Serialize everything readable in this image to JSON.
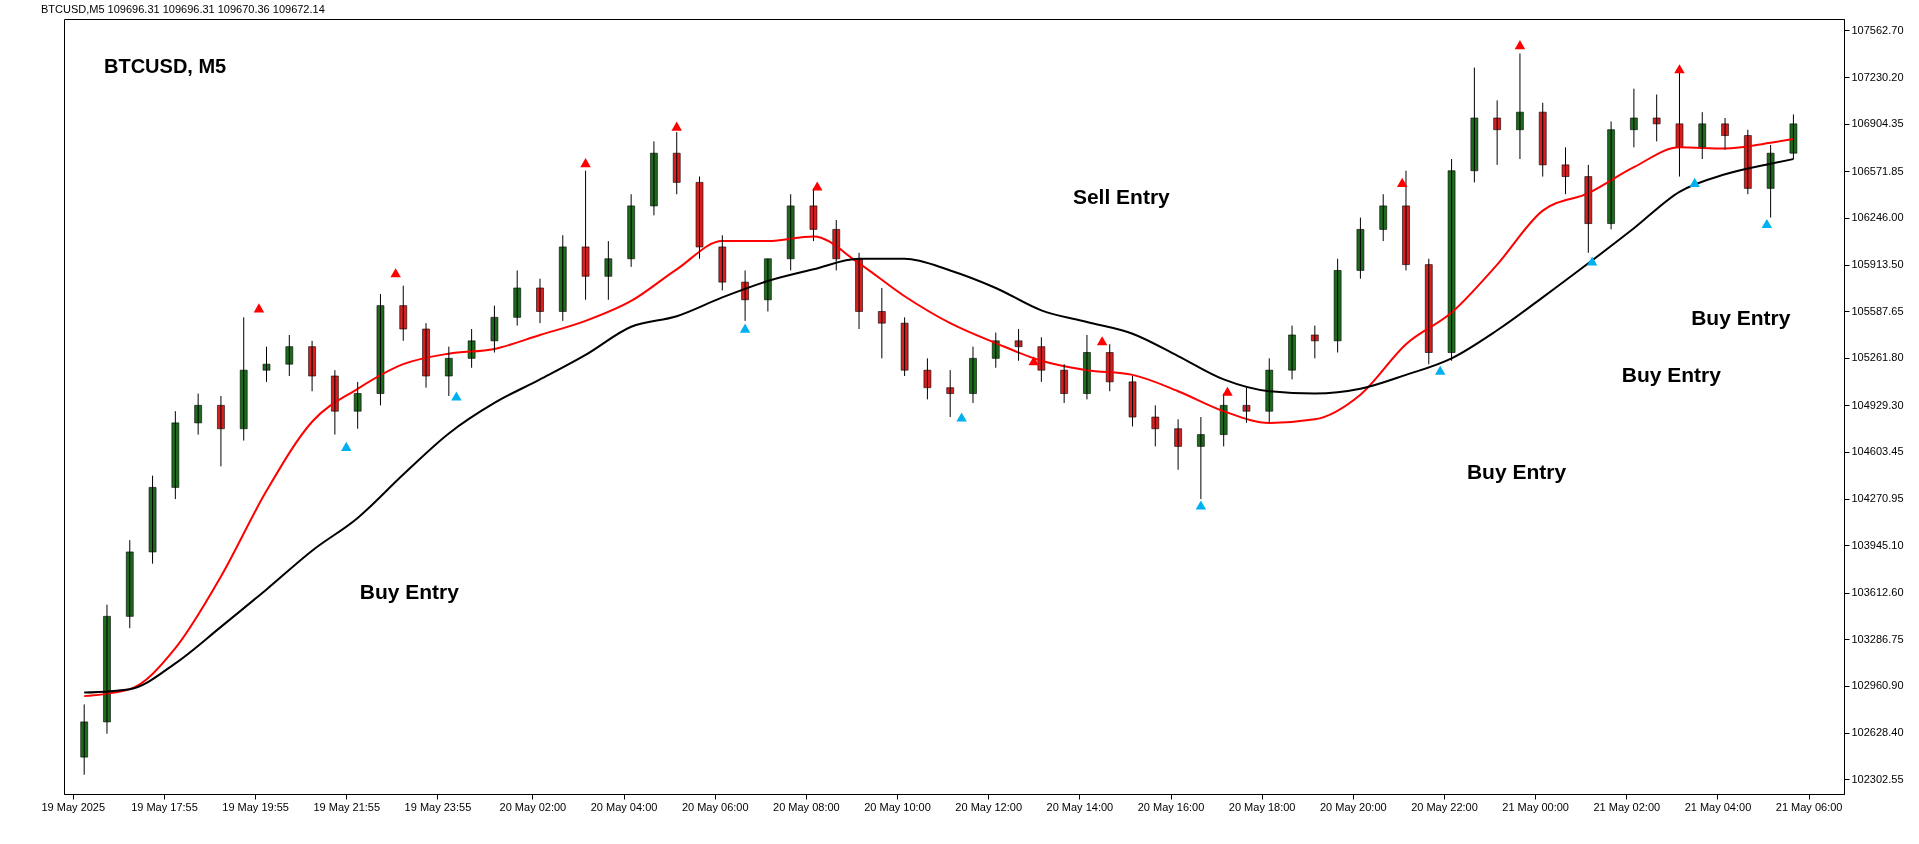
{
  "chart_data": {
    "type": "candlestick",
    "title": "BTCUSD, M5",
    "subtitle": "BTCUSD,M5  109696.31 109696.31 109670.36 109672.14",
    "x": [
      "2025-05-19T16:10",
      "2025-05-19T16:40",
      "2025-05-19T17:10",
      "2025-05-19T17:40",
      "2025-05-19T18:10",
      "2025-05-19T18:40",
      "2025-05-19T19:10",
      "2025-05-19T19:40",
      "2025-05-19T20:10",
      "2025-05-19T20:40",
      "2025-05-19T21:10",
      "2025-05-19T21:40",
      "2025-05-19T22:10",
      "2025-05-19T22:40",
      "2025-05-19T23:10",
      "2025-05-19T23:40",
      "2025-05-20T00:10",
      "2025-05-20T00:40",
      "2025-05-20T01:10",
      "2025-05-20T01:40",
      "2025-05-20T02:10",
      "2025-05-20T02:40",
      "2025-05-20T03:10",
      "2025-05-20T03:40",
      "2025-05-20T04:10",
      "2025-05-20T04:40",
      "2025-05-20T05:10",
      "2025-05-20T05:40",
      "2025-05-20T06:10",
      "2025-05-20T06:40",
      "2025-05-20T07:10",
      "2025-05-20T07:40",
      "2025-05-20T08:10",
      "2025-05-20T08:40",
      "2025-05-20T09:10",
      "2025-05-20T09:40",
      "2025-05-20T10:10",
      "2025-05-20T10:40",
      "2025-05-20T11:10",
      "2025-05-20T11:40",
      "2025-05-20T12:10",
      "2025-05-20T12:40",
      "2025-05-20T13:10",
      "2025-05-20T13:40",
      "2025-05-20T14:10",
      "2025-05-20T14:40",
      "2025-05-20T15:10",
      "2025-05-20T15:40",
      "2025-05-20T16:10",
      "2025-05-20T16:40",
      "2025-05-20T17:10",
      "2025-05-20T17:40",
      "2025-05-20T18:10",
      "2025-05-20T18:40",
      "2025-05-20T19:10",
      "2025-05-20T19:40",
      "2025-05-20T20:10",
      "2025-05-20T20:40",
      "2025-05-20T21:10",
      "2025-05-20T21:40",
      "2025-05-20T22:10",
      "2025-05-20T22:40",
      "2025-05-20T23:10",
      "2025-05-20T23:40",
      "2025-05-21T00:10",
      "2025-05-21T00:40",
      "2025-05-21T01:10",
      "2025-05-21T01:40",
      "2025-05-21T02:10",
      "2025-05-21T02:40",
      "2025-05-21T03:10",
      "2025-05-21T03:40",
      "2025-05-21T04:10",
      "2025-05-21T04:40",
      "2025-05-21T05:10",
      "2025-05-21T05:40"
    ],
    "ohlc": [
      [
        102459,
        102829,
        102335,
        102706
      ],
      [
        102706,
        103529,
        102623,
        103447
      ],
      [
        103447,
        103982,
        103364,
        103899
      ],
      [
        103899,
        104435,
        103817,
        104352
      ],
      [
        104352,
        104887,
        104270,
        104805
      ],
      [
        104805,
        105011,
        104723,
        104928
      ],
      [
        104928,
        104994,
        104500,
        104764
      ],
      [
        104764,
        105546,
        104681,
        105175
      ],
      [
        105175,
        105340,
        105093,
        105217
      ],
      [
        105217,
        105422,
        105134,
        105340
      ],
      [
        105340,
        105381,
        105027,
        105134
      ],
      [
        105134,
        105175,
        104723,
        104887
      ],
      [
        104887,
        105093,
        104764,
        105011
      ],
      [
        105011,
        105710,
        104928,
        105628
      ],
      [
        105628,
        105768,
        105381,
        105464
      ],
      [
        105464,
        105505,
        105052,
        105134
      ],
      [
        105134,
        105340,
        104994,
        105258
      ],
      [
        105258,
        105464,
        105192,
        105381
      ],
      [
        105381,
        105628,
        105299,
        105546
      ],
      [
        105546,
        105875,
        105488,
        105752
      ],
      [
        105752,
        105817,
        105505,
        105587
      ],
      [
        105587,
        106122,
        105521,
        106040
      ],
      [
        106040,
        106575,
        105669,
        105834
      ],
      [
        105834,
        106081,
        105669,
        105957
      ],
      [
        105957,
        106410,
        105900,
        106328
      ],
      [
        106328,
        106781,
        106262,
        106698
      ],
      [
        106698,
        106846,
        106410,
        106493
      ],
      [
        106493,
        106534,
        105957,
        106040
      ],
      [
        106040,
        106122,
        105735,
        105793
      ],
      [
        105793,
        105875,
        105521,
        105669
      ],
      [
        105669,
        105957,
        105587,
        105957
      ],
      [
        105957,
        106410,
        105875,
        106328
      ],
      [
        106328,
        106451,
        106081,
        106163
      ],
      [
        106163,
        106229,
        105875,
        105957
      ],
      [
        105957,
        105999,
        105464,
        105587
      ],
      [
        105587,
        105752,
        105258,
        105505
      ],
      [
        105505,
        105546,
        105134,
        105175
      ],
      [
        105175,
        105258,
        104970,
        105052
      ],
      [
        105052,
        105175,
        104846,
        105011
      ],
      [
        105011,
        105340,
        104945,
        105258
      ],
      [
        105258,
        105439,
        105192,
        105381
      ],
      [
        105381,
        105464,
        105241,
        105340
      ],
      [
        105340,
        105406,
        105093,
        105175
      ],
      [
        105175,
        105217,
        104945,
        105011
      ],
      [
        105011,
        105422,
        104970,
        105299
      ],
      [
        105299,
        105357,
        105027,
        105093
      ],
      [
        105093,
        105134,
        104780,
        104846
      ],
      [
        104846,
        104928,
        104640,
        104764
      ],
      [
        104764,
        104830,
        104476,
        104640
      ],
      [
        104640,
        104846,
        104270,
        104723
      ],
      [
        104723,
        105011,
        104640,
        104928
      ],
      [
        104928,
        105052,
        104805,
        104887
      ],
      [
        104887,
        105258,
        104805,
        105175
      ],
      [
        105175,
        105488,
        105110,
        105422
      ],
      [
        105422,
        105488,
        105258,
        105381
      ],
      [
        105381,
        105957,
        105299,
        105875
      ],
      [
        105875,
        106246,
        105817,
        106163
      ],
      [
        106163,
        106410,
        106081,
        106328
      ],
      [
        106328,
        106575,
        105875,
        105916
      ],
      [
        105916,
        105957,
        105217,
        105299
      ],
      [
        105299,
        106657,
        105241,
        106575
      ],
      [
        106575,
        107299,
        106493,
        106945
      ],
      [
        106945,
        107069,
        106616,
        106863
      ],
      [
        106863,
        107398,
        106657,
        106986
      ],
      [
        106986,
        107052,
        106534,
        106616
      ],
      [
        106616,
        106739,
        106410,
        106534
      ],
      [
        106534,
        106616,
        105999,
        106204
      ],
      [
        106204,
        106921,
        106163,
        106863
      ],
      [
        106863,
        107151,
        106739,
        106945
      ],
      [
        106945,
        107110,
        106781,
        106904
      ],
      [
        106904,
        107275,
        106534,
        106739
      ],
      [
        106739,
        106986,
        106657,
        106904
      ],
      [
        106904,
        106945,
        106723,
        106822
      ],
      [
        106822,
        106863,
        106410,
        106451
      ],
      [
        106451,
        106756,
        106246,
        106698
      ],
      [
        106698,
        106970,
        106657,
        106904
      ]
    ],
    "series": [
      {
        "type": "line",
        "color": "#ff0000",
        "x": [
          "2025-05-19T16:10",
          "2025-05-19T17:10",
          "2025-05-19T18:10",
          "2025-05-19T19:10",
          "2025-05-19T20:10",
          "2025-05-19T21:10",
          "2025-05-19T22:10",
          "2025-05-19T23:10",
          "2025-05-20T00:10",
          "2025-05-20T01:10",
          "2025-05-20T02:10",
          "2025-05-20T03:10",
          "2025-05-20T04:10",
          "2025-05-20T05:10",
          "2025-05-20T06:10",
          "2025-05-20T07:10",
          "2025-05-20T08:10",
          "2025-05-20T09:10",
          "2025-05-20T10:10",
          "2025-05-20T11:10",
          "2025-05-20T12:10",
          "2025-05-20T13:10",
          "2025-05-20T14:10",
          "2025-05-20T15:10",
          "2025-05-20T16:10",
          "2025-05-20T17:10",
          "2025-05-20T18:10",
          "2025-05-20T19:10",
          "2025-05-20T20:10",
          "2025-05-20T21:10",
          "2025-05-20T22:10",
          "2025-05-20T23:10",
          "2025-05-21T00:10",
          "2025-05-21T01:10",
          "2025-05-21T02:10",
          "2025-05-21T03:10",
          "2025-05-21T04:10",
          "2025-05-21T05:10",
          "2025-05-21T05:40"
        ],
        "values": [
          102887,
          102936,
          103224,
          103727,
          104328,
          104813,
          105044,
          105217,
          105291,
          105324,
          105422,
          105521,
          105661,
          105883,
          106081,
          106081,
          106114,
          105925,
          105694,
          105505,
          105365,
          105241,
          105175,
          105142,
          105027,
          104887,
          104805,
          104830,
          105003,
          105357,
          105579,
          105916,
          106295,
          106418,
          106600,
          106739,
          106731,
          106772,
          106797
        ]
      },
      {
        "type": "line",
        "color": "#000000",
        "x": [
          "2025-05-19T16:10",
          "2025-05-19T17:10",
          "2025-05-19T18:10",
          "2025-05-19T19:10",
          "2025-05-19T20:10",
          "2025-05-19T21:10",
          "2025-05-19T22:10",
          "2025-05-19T23:10",
          "2025-05-20T00:10",
          "2025-05-20T01:10",
          "2025-05-20T02:10",
          "2025-05-20T03:10",
          "2025-05-20T04:10",
          "2025-05-20T05:10",
          "2025-05-20T06:10",
          "2025-05-20T07:10",
          "2025-05-20T08:10",
          "2025-05-20T09:10",
          "2025-05-20T10:10",
          "2025-05-20T11:10",
          "2025-05-20T12:10",
          "2025-05-20T13:10",
          "2025-05-20T14:10",
          "2025-05-20T15:10",
          "2025-05-20T16:10",
          "2025-05-20T17:10",
          "2025-05-20T18:10",
          "2025-05-20T19:10",
          "2025-05-20T20:10",
          "2025-05-20T21:10",
          "2025-05-20T22:10",
          "2025-05-20T23:10",
          "2025-05-21T00:10",
          "2025-05-21T01:10",
          "2025-05-21T02:10",
          "2025-05-21T03:10",
          "2025-05-21T04:10",
          "2025-05-21T05:10",
          "2025-05-21T05:40"
        ],
        "values": [
          102912,
          102936,
          103117,
          103373,
          103636,
          103908,
          104138,
          104443,
          104731,
          104945,
          105110,
          105282,
          105480,
          105554,
          105686,
          105801,
          105883,
          105957,
          105957,
          105875,
          105752,
          105595,
          105513,
          105431,
          105274,
          105110,
          105027,
          105011,
          105044,
          105142,
          105258,
          105455,
          105686,
          105925,
          106171,
          106427,
          106550,
          106624,
          106657
        ]
      },
      {
        "type": "scatter",
        "marker": "triangle",
        "color": "#ff0000",
        "x": [
          "2025-05-19T20:00",
          "2025-05-19T23:00",
          "2025-05-20T03:10",
          "2025-05-20T05:10",
          "2025-05-20T08:15",
          "2025-05-20T13:00",
          "2025-05-20T14:30",
          "2025-05-20T17:15",
          "2025-05-20T21:05",
          "2025-05-20T23:40",
          "2025-05-21T03:10"
        ],
        "values": [
          105612,
          105859,
          106632,
          106888,
          106468,
          105241,
          105381,
          105027,
          106493,
          107460,
          107291
        ]
      },
      {
        "type": "scatter",
        "marker": "triangle",
        "color": "#00b0f0",
        "x": [
          "2025-05-19T21:55",
          "2025-05-20T00:20",
          "2025-05-20T06:40",
          "2025-05-20T11:25",
          "2025-05-20T16:40",
          "2025-05-20T21:55",
          "2025-05-21T01:15",
          "2025-05-21T03:30",
          "2025-05-21T05:05"
        ],
        "values": [
          104640,
          104994,
          105470,
          104846,
          104229,
          105175,
          105941,
          106493,
          106204
        ]
      }
    ],
    "annotations": [
      "Buy Entry",
      "Sell Entry",
      "Buy Entry",
      "Buy Entry",
      "Buy Entry"
    ],
    "xlim": [
      "2025-05-19T15:50",
      "2025-05-21T06:40"
    ],
    "xticks": [
      {
        "value": "2025-05-19T15:55",
        "label": "19 May 2025"
      },
      {
        "value": "2025-05-19T17:55",
        "label": "19 May 17:55"
      },
      {
        "value": "2025-05-19T19:55",
        "label": "19 May 19:55"
      },
      {
        "value": "2025-05-19T21:55",
        "label": "19 May 21:55"
      },
      {
        "value": "2025-05-19T23:55",
        "label": "19 May 23:55"
      },
      {
        "value": "2025-05-20T02:00",
        "label": "20 May 02:00"
      },
      {
        "value": "2025-05-20T04:00",
        "label": "20 May 04:00"
      },
      {
        "value": "2025-05-20T06:00",
        "label": "20 May 06:00"
      },
      {
        "value": "2025-05-20T08:00",
        "label": "20 May 08:00"
      },
      {
        "value": "2025-05-20T10:00",
        "label": "20 May 10:00"
      },
      {
        "value": "2025-05-20T12:00",
        "label": "20 May 12:00"
      },
      {
        "value": "2025-05-20T14:00",
        "label": "20 May 14:00"
      },
      {
        "value": "2025-05-20T16:00",
        "label": "20 May 16:00"
      },
      {
        "value": "2025-05-20T18:00",
        "label": "20 May 18:00"
      },
      {
        "value": "2025-05-20T20:00",
        "label": "20 May 20:00"
      },
      {
        "value": "2025-05-20T22:00",
        "label": "20 May 22:00"
      },
      {
        "value": "2025-05-21T00:00",
        "label": "21 May 00:00"
      },
      {
        "value": "2025-05-21T02:00",
        "label": "21 May 02:00"
      },
      {
        "value": "2025-05-21T04:00",
        "label": "21 May 04:00"
      },
      {
        "value": "2025-05-21T06:00",
        "label": "21 May 06:00"
      }
    ],
    "ylim": [
      102200,
      107640
    ],
    "yticks": [
      {
        "value": 107562.7,
        "label": "107562.70"
      },
      {
        "value": 107230.2,
        "label": "107230.20"
      },
      {
        "value": 106904.35,
        "label": "106904.35"
      },
      {
        "value": 106571.85,
        "label": "106571.85"
      },
      {
        "value": 106246,
        "label": "106246.00"
      },
      {
        "value": 105913.5,
        "label": "105913.50"
      },
      {
        "value": 105587.65,
        "label": "105587.65"
      },
      {
        "value": 105261.8,
        "label": "105261.80"
      },
      {
        "value": 104929.3,
        "label": "104929.30"
      },
      {
        "value": 104603.45,
        "label": "104603.45"
      },
      {
        "value": 104270.95,
        "label": "104270.95"
      },
      {
        "value": 103945.1,
        "label": "103945.10"
      },
      {
        "value": 103612.6,
        "label": "103612.60"
      },
      {
        "value": 103286.75,
        "label": "103286.75"
      },
      {
        "value": 102960.9,
        "label": "102960.90"
      },
      {
        "value": 102628.4,
        "label": "102628.40"
      },
      {
        "value": 102302.55,
        "label": "102302.55"
      }
    ]
  }
}
